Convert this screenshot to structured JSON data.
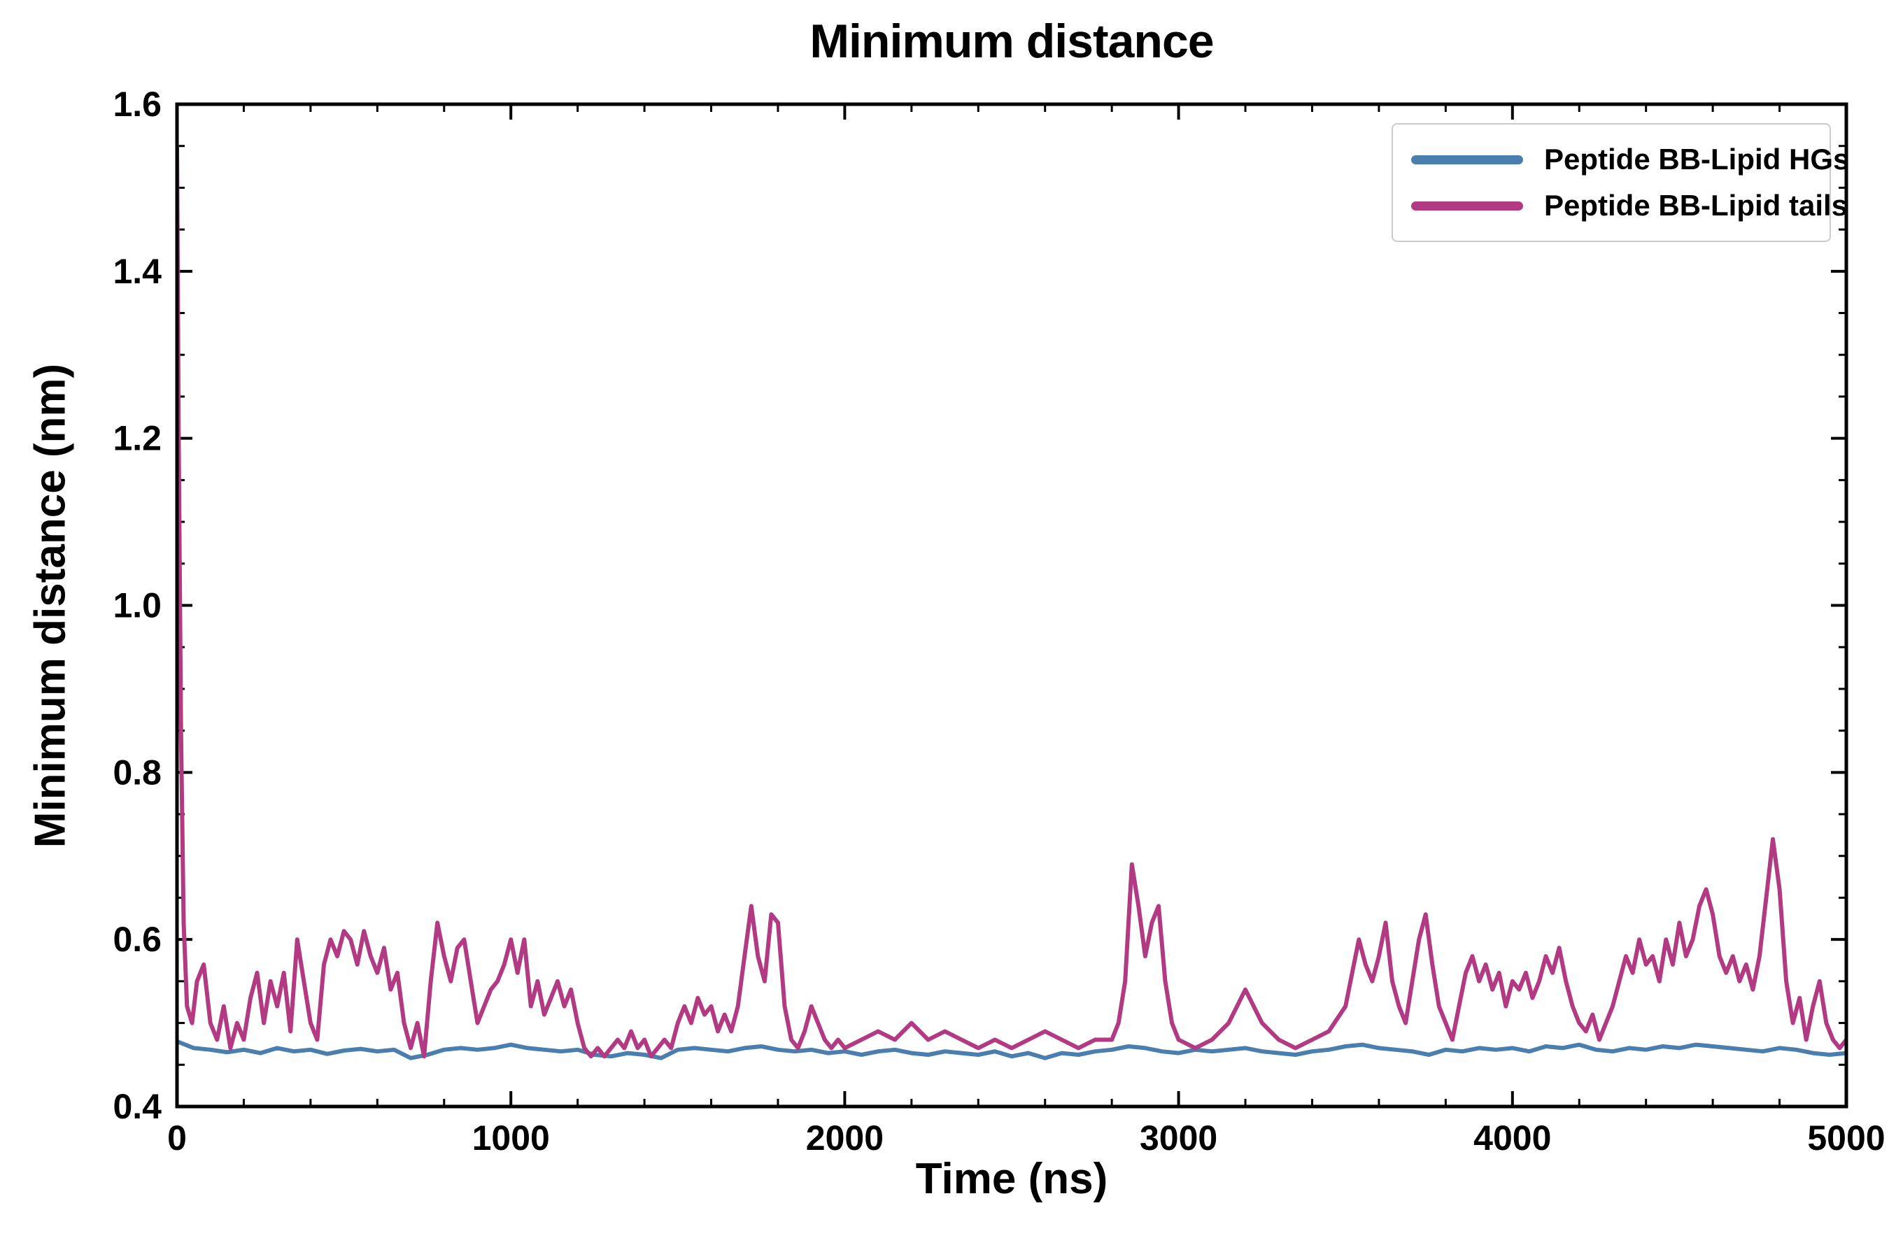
{
  "chart_data": {
    "type": "line",
    "title": "Minimum distance",
    "xlabel": "Time (ns)",
    "ylabel": "Minimum distance (nm)",
    "xlim": [
      0,
      5000
    ],
    "ylim": [
      0.4,
      1.6
    ],
    "x_ticks": [
      0,
      1000,
      2000,
      3000,
      4000,
      5000
    ],
    "x_tick_labels": [
      "0",
      "1000",
      "2000",
      "3000",
      "4000",
      "5000"
    ],
    "x_minor_step": 200,
    "y_ticks": [
      0.4,
      0.6,
      0.8,
      1.0,
      1.2,
      1.4,
      1.6
    ],
    "y_tick_labels": [
      "0.4",
      "0.6",
      "0.8",
      "1.0",
      "1.2",
      "1.4",
      "1.6"
    ],
    "y_minor_step": 0.05,
    "grid": false,
    "legend_position": "upper right",
    "axis_color": "#000000",
    "series": [
      {
        "name": "Peptide BB-Lipid HGs",
        "color": "#4a7eae",
        "x_start": 0,
        "x_step": 50,
        "y": [
          0.478,
          0.47,
          0.468,
          0.465,
          0.468,
          0.464,
          0.47,
          0.466,
          0.468,
          0.463,
          0.467,
          0.469,
          0.466,
          0.468,
          0.458,
          0.462,
          0.468,
          0.47,
          0.468,
          0.47,
          0.474,
          0.47,
          0.468,
          0.466,
          0.468,
          0.462,
          0.46,
          0.464,
          0.462,
          0.458,
          0.468,
          0.47,
          0.468,
          0.466,
          0.47,
          0.472,
          0.468,
          0.466,
          0.468,
          0.464,
          0.466,
          0.462,
          0.466,
          0.468,
          0.464,
          0.462,
          0.466,
          0.464,
          0.462,
          0.466,
          0.46,
          0.464,
          0.458,
          0.464,
          0.462,
          0.466,
          0.468,
          0.472,
          0.47,
          0.466,
          0.464,
          0.468,
          0.466,
          0.468,
          0.47,
          0.466,
          0.464,
          0.462,
          0.466,
          0.468,
          0.472,
          0.474,
          0.47,
          0.468,
          0.466,
          0.462,
          0.468,
          0.466,
          0.47,
          0.468,
          0.47,
          0.466,
          0.472,
          0.47,
          0.474,
          0.468,
          0.466,
          0.47,
          0.468,
          0.472,
          0.47,
          0.474,
          0.472,
          0.47,
          0.468,
          0.466,
          0.47,
          0.468,
          0.464,
          0.462,
          0.464
        ]
      },
      {
        "name": "Peptide BB-Lipid tails",
        "color": "#b13a82",
        "x": [
          0,
          5,
          12,
          20,
          30,
          45,
          60,
          80,
          100,
          120,
          140,
          160,
          180,
          200,
          220,
          240,
          260,
          280,
          300,
          320,
          340,
          360,
          380,
          400,
          420,
          440,
          460,
          480,
          500,
          520,
          540,
          560,
          580,
          600,
          620,
          640,
          660,
          680,
          700,
          720,
          740,
          760,
          780,
          800,
          820,
          840,
          860,
          880,
          900,
          920,
          940,
          960,
          980,
          1000,
          1020,
          1040,
          1060,
          1080,
          1100,
          1120,
          1140,
          1160,
          1180,
          1200,
          1220,
          1240,
          1260,
          1280,
          1300,
          1320,
          1340,
          1360,
          1380,
          1400,
          1420,
          1440,
          1460,
          1480,
          1500,
          1520,
          1540,
          1560,
          1580,
          1600,
          1620,
          1640,
          1660,
          1680,
          1700,
          1720,
          1740,
          1760,
          1780,
          1800,
          1820,
          1840,
          1860,
          1880,
          1900,
          1920,
          1940,
          1960,
          1980,
          2000,
          2050,
          2100,
          2150,
          2200,
          2250,
          2300,
          2350,
          2400,
          2450,
          2500,
          2550,
          2600,
          2650,
          2700,
          2750,
          2800,
          2820,
          2840,
          2860,
          2880,
          2900,
          2920,
          2940,
          2960,
          2980,
          3000,
          3050,
          3100,
          3150,
          3200,
          3250,
          3300,
          3350,
          3400,
          3450,
          3500,
          3520,
          3540,
          3560,
          3580,
          3600,
          3620,
          3640,
          3660,
          3680,
          3700,
          3720,
          3740,
          3760,
          3780,
          3800,
          3820,
          3840,
          3860,
          3880,
          3900,
          3920,
          3940,
          3960,
          3980,
          4000,
          4020,
          4040,
          4060,
          4080,
          4100,
          4120,
          4140,
          4160,
          4180,
          4200,
          4220,
          4240,
          4260,
          4280,
          4300,
          4320,
          4340,
          4360,
          4380,
          4400,
          4420,
          4440,
          4460,
          4480,
          4500,
          4520,
          4540,
          4560,
          4580,
          4600,
          4620,
          4640,
          4660,
          4680,
          4700,
          4720,
          4740,
          4760,
          4780,
          4800,
          4820,
          4840,
          4860,
          4880,
          4900,
          4920,
          4940,
          4960,
          4980,
          5000
        ],
        "y": [
          1.55,
          1.2,
          0.85,
          0.62,
          0.52,
          0.5,
          0.55,
          0.57,
          0.5,
          0.48,
          0.52,
          0.47,
          0.5,
          0.48,
          0.53,
          0.56,
          0.5,
          0.55,
          0.52,
          0.56,
          0.49,
          0.6,
          0.55,
          0.5,
          0.48,
          0.57,
          0.6,
          0.58,
          0.61,
          0.6,
          0.57,
          0.61,
          0.58,
          0.56,
          0.59,
          0.54,
          0.56,
          0.5,
          0.47,
          0.5,
          0.46,
          0.55,
          0.62,
          0.58,
          0.55,
          0.59,
          0.6,
          0.55,
          0.5,
          0.52,
          0.54,
          0.55,
          0.57,
          0.6,
          0.56,
          0.6,
          0.52,
          0.55,
          0.51,
          0.53,
          0.55,
          0.52,
          0.54,
          0.5,
          0.47,
          0.46,
          0.47,
          0.46,
          0.47,
          0.48,
          0.47,
          0.49,
          0.47,
          0.48,
          0.46,
          0.47,
          0.48,
          0.47,
          0.5,
          0.52,
          0.5,
          0.53,
          0.51,
          0.52,
          0.49,
          0.51,
          0.49,
          0.52,
          0.58,
          0.64,
          0.58,
          0.55,
          0.63,
          0.62,
          0.52,
          0.48,
          0.47,
          0.49,
          0.52,
          0.5,
          0.48,
          0.47,
          0.48,
          0.47,
          0.48,
          0.49,
          0.48,
          0.5,
          0.48,
          0.49,
          0.48,
          0.47,
          0.48,
          0.47,
          0.48,
          0.49,
          0.48,
          0.47,
          0.48,
          0.48,
          0.5,
          0.55,
          0.69,
          0.64,
          0.58,
          0.62,
          0.64,
          0.55,
          0.5,
          0.48,
          0.47,
          0.48,
          0.5,
          0.54,
          0.5,
          0.48,
          0.47,
          0.48,
          0.49,
          0.52,
          0.56,
          0.6,
          0.57,
          0.55,
          0.58,
          0.62,
          0.55,
          0.52,
          0.5,
          0.55,
          0.6,
          0.63,
          0.57,
          0.52,
          0.5,
          0.48,
          0.52,
          0.56,
          0.58,
          0.55,
          0.57,
          0.54,
          0.56,
          0.52,
          0.55,
          0.54,
          0.56,
          0.53,
          0.55,
          0.58,
          0.56,
          0.59,
          0.55,
          0.52,
          0.5,
          0.49,
          0.51,
          0.48,
          0.5,
          0.52,
          0.55,
          0.58,
          0.56,
          0.6,
          0.57,
          0.58,
          0.55,
          0.6,
          0.57,
          0.62,
          0.58,
          0.6,
          0.64,
          0.66,
          0.63,
          0.58,
          0.56,
          0.58,
          0.55,
          0.57,
          0.54,
          0.58,
          0.65,
          0.72,
          0.66,
          0.55,
          0.5,
          0.53,
          0.48,
          0.52,
          0.55,
          0.5,
          0.48,
          0.47,
          0.48
        ]
      }
    ]
  }
}
